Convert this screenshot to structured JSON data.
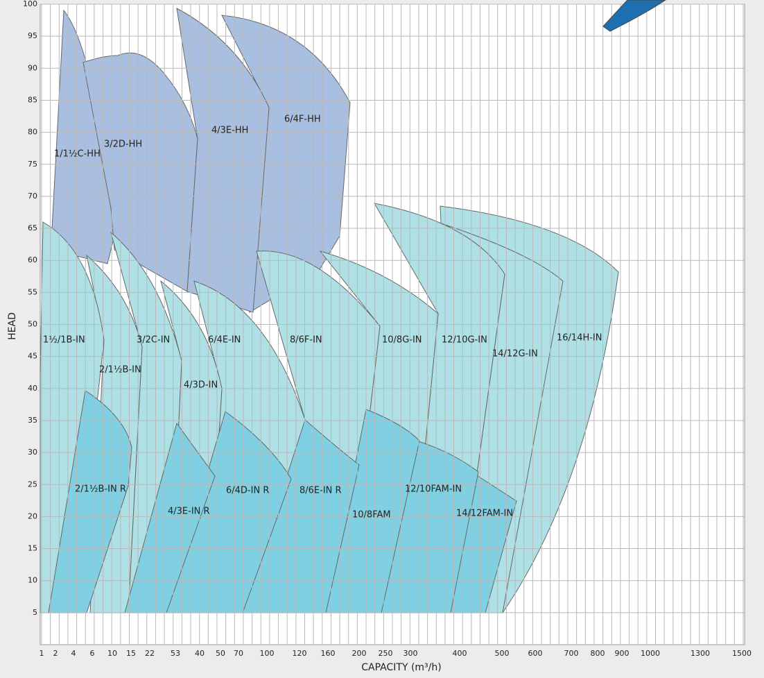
{
  "chart_data": {
    "type": "coverage",
    "y_label": "HEAD",
    "x_label": "CAPACITY (m³/h)",
    "ylim": [
      0,
      100
    ],
    "yticks": [
      5,
      10,
      15,
      20,
      25,
      30,
      35,
      40,
      45,
      50,
      55,
      60,
      65,
      70,
      75,
      80,
      85,
      90,
      95,
      100
    ],
    "categories": [
      "1",
      "2",
      "4",
      "6",
      "10",
      "15",
      "22",
      "53",
      "40",
      "50",
      "70",
      "100",
      "120",
      "160",
      "200",
      "250",
      "300",
      "400",
      "500",
      "600",
      "700",
      "800",
      "900",
      "1000",
      "1300",
      "1500"
    ],
    "grid": true,
    "regions": [
      {
        "name": "1/1½C-HH",
        "color": "#a9bfe2"
      },
      {
        "name": "3/2D-HH",
        "color": "#a9bfe2"
      },
      {
        "name": "4/3E-HH",
        "color": "#a9bfe2"
      },
      {
        "name": "6/4F-HH",
        "color": "#a9bfe2"
      },
      {
        "name": "1½/1B-IN",
        "color": "#aee0e5"
      },
      {
        "name": "2/1½B-IN",
        "color": "#aee0e5"
      },
      {
        "name": "3/2C-IN",
        "color": "#aee0e5"
      },
      {
        "name": "4/3D-IN",
        "color": "#aee0e5"
      },
      {
        "name": "6/4E-IN",
        "color": "#aee0e5"
      },
      {
        "name": "8/6F-IN",
        "color": "#aee0e5"
      },
      {
        "name": "10/8G-IN",
        "color": "#aee0e5"
      },
      {
        "name": "12/10G-IN",
        "color": "#aee0e5"
      },
      {
        "name": "14/12G-IN",
        "color": "#aee0e5"
      },
      {
        "name": "16/14H-IN",
        "color": "#aee0e5"
      },
      {
        "name": "2/1½B-IN R",
        "color": "#7fd0e3"
      },
      {
        "name": "4/3E-IN R",
        "color": "#7fd0e3"
      },
      {
        "name": "6/4D-IN R",
        "color": "#7fd0e3"
      },
      {
        "name": "8/6E-IN R",
        "color": "#7fd0e3"
      },
      {
        "name": "10/8FAM",
        "color": "#7fd0e3"
      },
      {
        "name": "12/10FAM-IN",
        "color": "#7fd0e3"
      },
      {
        "name": "14/12FAM-IN",
        "color": "#7fd0e3"
      }
    ]
  }
}
